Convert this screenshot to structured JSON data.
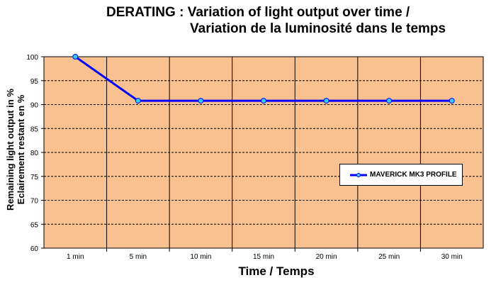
{
  "chart_data": {
    "type": "line",
    "title": "DERATING : Variation of light output over time /",
    "subtitle": "Variation de la luminosité dans le temps",
    "xlabel": "Time / Temps",
    "ylabel": [
      "Remaining light output in %",
      "Eclairement restant en %"
    ],
    "categories": [
      "1 min",
      "5 min",
      "10 min",
      "15 min",
      "20 min",
      "25 min",
      "30 min"
    ],
    "ylim": [
      60,
      100
    ],
    "yticks": [
      60,
      65,
      70,
      75,
      80,
      85,
      90,
      95,
      100
    ],
    "grid": true,
    "legend_placement": "right",
    "series": [
      {
        "name": "MAVERICK MK3 PROFILE",
        "values": [
          100,
          90.8,
          90.8,
          90.8,
          90.8,
          90.8,
          90.8
        ],
        "color": "#0000FF",
        "marker_color": "#33CCFF"
      }
    ],
    "plot_background": "#F9C090"
  }
}
